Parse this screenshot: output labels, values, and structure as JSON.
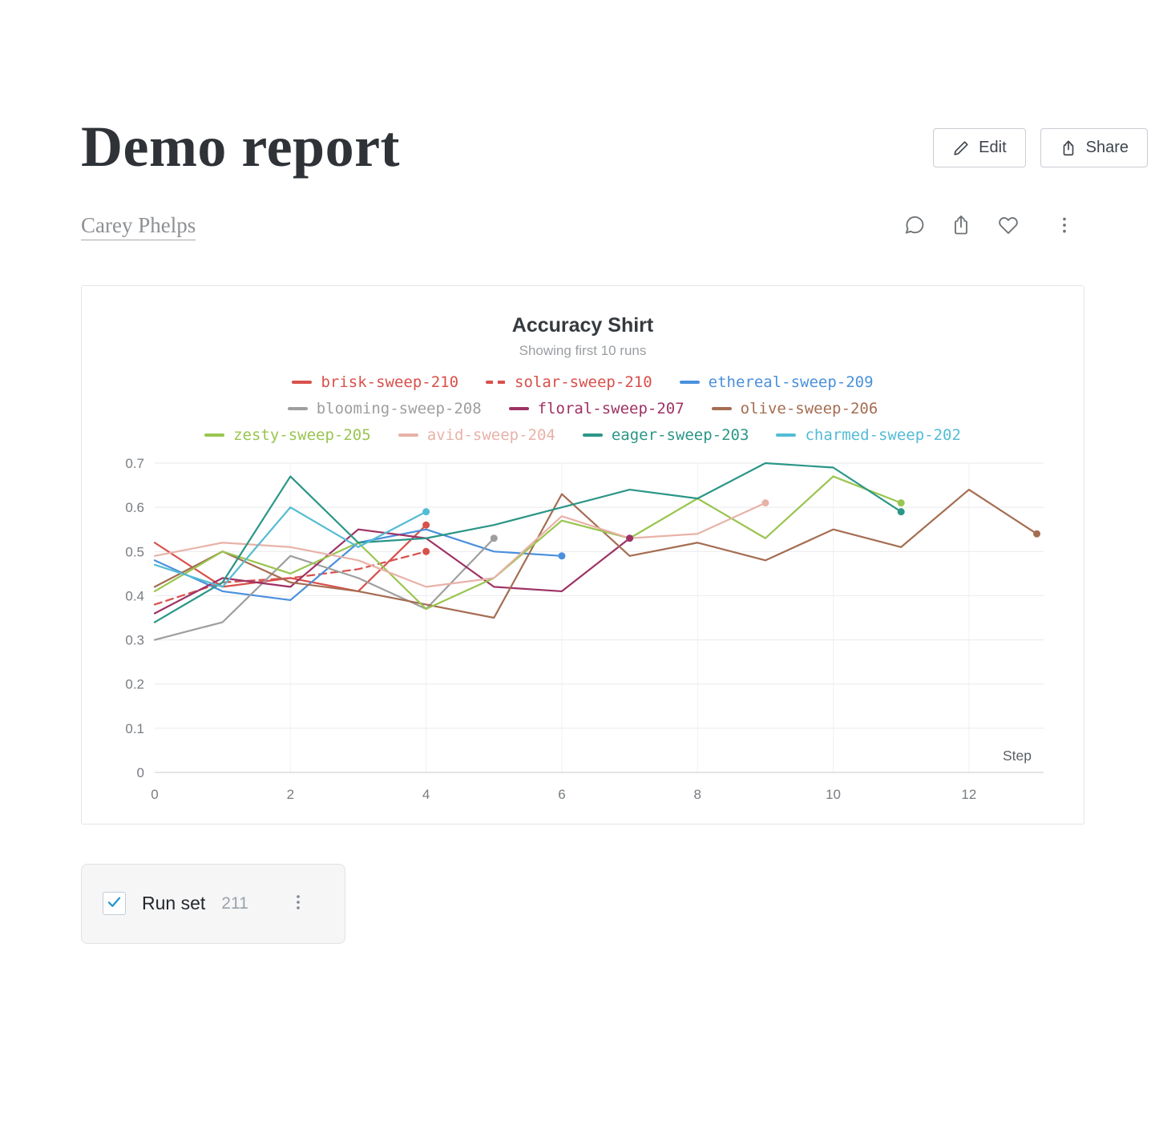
{
  "toolbar": {
    "edit_label": "Edit",
    "share_label": "Share"
  },
  "report": {
    "title": "Demo report",
    "author": "Carey Phelps"
  },
  "action_bar": {
    "icons": [
      "comment-icon",
      "export-icon",
      "heart-icon",
      "kebab-menu-icon"
    ]
  },
  "chart_data": {
    "type": "line",
    "title": "Accuracy Shirt",
    "subtitle": "Showing first 10 runs",
    "xlabel": "Step",
    "ylabel": "",
    "x_ticks": [
      0,
      2,
      4,
      6,
      8,
      10,
      12
    ],
    "y_ticks": [
      0,
      0.1,
      0.2,
      0.3,
      0.4,
      0.5,
      0.6,
      0.7
    ],
    "xlim": [
      0,
      13.1
    ],
    "ylim": [
      0,
      0.7
    ],
    "grid": true,
    "legend_position": "top",
    "x_step": 1,
    "series": [
      {
        "name": "brisk-sweep-210",
        "color": "#d9504c",
        "dashed": false,
        "values": [
          0.52,
          0.42,
          0.44,
          0.41,
          0.56
        ]
      },
      {
        "name": "solar-sweep-210",
        "color": "#d9504c",
        "dashed": true,
        "values": [
          0.38,
          0.43,
          0.44,
          0.46,
          0.5
        ]
      },
      {
        "name": "ethereal-sweep-209",
        "color": "#4a90dd",
        "dashed": false,
        "values": [
          0.48,
          0.41,
          0.39,
          0.52,
          0.55,
          0.5,
          0.49
        ]
      },
      {
        "name": "blooming-sweep-208",
        "color": "#9e9e9e",
        "dashed": false,
        "values": [
          0.3,
          0.34,
          0.49,
          0.44,
          0.37,
          0.53
        ]
      },
      {
        "name": "floral-sweep-207",
        "color": "#9e3264",
        "dashed": false,
        "values": [
          0.36,
          0.44,
          0.42,
          0.55,
          0.53,
          0.42,
          0.41,
          0.53
        ]
      },
      {
        "name": "olive-sweep-206",
        "color": "#a56d52",
        "dashed": false,
        "values": [
          0.42,
          0.5,
          0.43,
          0.41,
          0.38,
          0.35,
          0.63,
          0.49,
          0.52,
          0.48,
          0.55,
          0.51,
          0.64,
          0.54
        ]
      },
      {
        "name": "zesty-sweep-205",
        "color": "#9ac54f",
        "dashed": false,
        "values": [
          0.41,
          0.5,
          0.45,
          0.52,
          0.37,
          0.44,
          0.57,
          0.53,
          0.62,
          0.53,
          0.67,
          0.61
        ]
      },
      {
        "name": "avid-sweep-204",
        "color": "#e8b2a8",
        "dashed": false,
        "values": [
          0.49,
          0.52,
          0.51,
          0.48,
          0.42,
          0.44,
          0.58,
          0.53,
          0.54,
          0.61
        ]
      },
      {
        "name": "eager-sweep-203",
        "color": "#2b9687",
        "dashed": false,
        "values": [
          0.34,
          0.43,
          0.67,
          0.52,
          0.53,
          0.56,
          0.6,
          0.64,
          0.62,
          0.7,
          0.69,
          0.59
        ]
      },
      {
        "name": "charmed-sweep-202",
        "color": "#54bcd4",
        "dashed": false,
        "values": [
          0.47,
          0.42,
          0.6,
          0.51,
          0.59
        ]
      }
    ]
  },
  "run_set": {
    "label": "Run set",
    "count": "211",
    "checked": true,
    "accent": "#2196c9"
  }
}
